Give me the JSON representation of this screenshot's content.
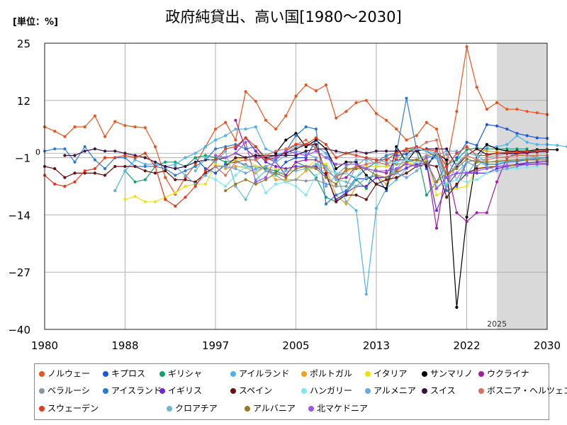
{
  "unit_label": "[単位：%]",
  "chart_data": {
    "type": "line",
    "title": "政府純貸出、高い国[1980～2030]",
    "xlim": [
      1980,
      2030
    ],
    "ylim": [
      -40,
      25
    ],
    "x_ticks": [
      "1980",
      "1988",
      "1997",
      "2005",
      "2013",
      "2022",
      "2030"
    ],
    "y_ticks": [
      "25",
      "12",
      "−1",
      "−14",
      "−27",
      "−40"
    ],
    "zero_label": "0",
    "forecast_start": 2025,
    "forecast_label": "2025",
    "grid": true,
    "legend_position": "bottom",
    "series": [
      {
        "name": "ノルウェー",
        "color": "#e8551f",
        "start": 1980,
        "values": [
          6,
          5,
          3.8,
          6,
          6,
          8.5,
          3.8,
          7.2,
          6.3,
          6,
          5.8,
          1.5,
          -5.5,
          -9.3,
          -5.5,
          -2.5,
          1.5,
          5.5,
          7,
          3,
          14,
          11.8,
          7.5,
          5.5,
          8.5,
          13,
          15.5,
          14.2,
          15.5,
          8,
          9.5,
          11.5,
          12,
          9,
          7.5,
          5.5,
          3,
          4,
          7,
          5.5,
          -3,
          9.5,
          24.2,
          15,
          10,
          11.5,
          10,
          10,
          9.5,
          9.2,
          8.8
        ]
      },
      {
        "name": "キプロス",
        "color": "#1a56db",
        "start": 1995,
        "values": [
          -1,
          -3.5,
          -4.5,
          -2.5,
          -2,
          -1.5,
          -1.5,
          -4,
          -4.5,
          -2,
          -1,
          -1,
          3,
          1,
          -5,
          -4.5,
          -5.8,
          -5.8,
          -5,
          -8.5,
          -0.5,
          -0.2,
          1.5,
          -3.5,
          1,
          -5.5,
          -1,
          2.5,
          1.8,
          6.5,
          6.2,
          5.5,
          4.5,
          4,
          3.5,
          3.4
        ]
      },
      {
        "name": "ギリシャ",
        "color": "#14a06c",
        "start": 1988,
        "values": [
          -4,
          -6.5,
          -6,
          -3,
          -2,
          -2,
          -3,
          -1,
          -0.5,
          -1,
          -2,
          -1.5,
          -3,
          -3,
          -3.5,
          -4,
          -5,
          -2,
          -3,
          -5.5,
          -10,
          -11,
          -9,
          -6,
          -8,
          -3,
          -3,
          -2.5,
          1,
          1,
          -9.5,
          -6.5,
          -2.5,
          -1.5,
          0.8,
          1.2,
          1,
          1,
          1,
          1,
          1
        ]
      },
      {
        "name": "アイルランド",
        "color": "#4fb3e8",
        "start": 1987,
        "values": [
          -8.5,
          -4,
          -1.5,
          -2.5,
          -2.5,
          -3,
          -2.5,
          -1,
          0,
          1.5,
          3,
          4,
          5.5,
          5.5,
          6,
          1,
          0,
          0,
          1.5,
          2,
          1.5,
          0,
          -4.5,
          -11,
          -13,
          -32,
          -12.5,
          -8,
          -6,
          -3.5,
          -2,
          -1,
          -0.5,
          0.5,
          0.5,
          -5,
          -1.5,
          1.5,
          1.5,
          2,
          4,
          2.5,
          2,
          2,
          1.8,
          1.5
        ]
      },
      {
        "name": "ポルトガル",
        "color": "#f0a21a",
        "start": 1998,
        "values": [
          -3.5,
          -3,
          -3.2,
          -4.5,
          -3,
          -6,
          -6,
          -6,
          -4,
          -3,
          -3.5,
          -9.5,
          -11.5,
          -7.5,
          -5.5,
          -5,
          -7,
          -4.5,
          -2,
          -3,
          -0.5,
          0,
          -5.5,
          -3,
          -0.5,
          1,
          0.5,
          0.3,
          0,
          -0.2,
          -0.5,
          -0.8
        ]
      },
      {
        "name": "イタリア",
        "color": "#f0e010",
        "start": 1988,
        "values": [
          -10.5,
          -9.8,
          -11,
          -11,
          -10,
          -9,
          -7.5,
          -7,
          -7,
          -2.5,
          -3,
          -1.5,
          -1,
          -3,
          -3,
          -3.5,
          -3.5,
          -4,
          -3.5,
          -1.5,
          -2.5,
          -5,
          -4,
          -3.5,
          -3,
          -3,
          -3,
          -2.5,
          -2.5,
          -2,
          -1.5,
          -9.5,
          -8.5,
          -8,
          -7.5,
          -3.5,
          -3,
          -3,
          -3,
          -2.8,
          -2.5,
          -2.5,
          -2.5
        ]
      },
      {
        "name": "サンマリノ",
        "color": "#000000",
        "start": 2003,
        "values": [
          0,
          3,
          4.5,
          1.5,
          3,
          1,
          -3.5,
          -2,
          -2,
          -5,
          -7,
          -8,
          1.5,
          -2,
          1,
          -3,
          0,
          -1.5,
          -35,
          -14.5,
          -0.5,
          2,
          1,
          0.5,
          0.5,
          0.5,
          0.8,
          0.8,
          0.8
        ]
      },
      {
        "name": "ウクライナ",
        "color": "#a01fa0",
        "start": 1999,
        "values": [
          7.5,
          1,
          -1,
          -1,
          -2,
          -5,
          -2,
          -1.5,
          -1.5,
          -3,
          -6,
          -5.5,
          -3,
          -3.5,
          -4,
          -4.5,
          -1.5,
          -1.5,
          -1.5,
          -2,
          -17,
          -3,
          -13.5,
          -15.5,
          -13.5,
          -13.5,
          -6.5,
          -1,
          0,
          0,
          0.5
        ]
      },
      {
        "name": "ベラルーシ",
        "color": "#8a96a8",
        "start": 1999,
        "values": [
          -2,
          -2.5,
          -4,
          -3,
          -5,
          -6.5,
          -6,
          -6.3,
          -6,
          -7,
          -7.5,
          -7.5,
          -3,
          -1,
          -2.5,
          -1,
          -2.5,
          -2,
          -1.5,
          -0.5,
          -1,
          -0.3,
          -6,
          -2,
          -3,
          -1,
          -0.5,
          0,
          -0.5,
          -0.5,
          -1,
          -1
        ]
      },
      {
        "name": "アイスランド",
        "color": "#2a7ad0",
        "start": 1980,
        "values": [
          0.5,
          1,
          1,
          -2,
          1.5,
          -1.5,
          -3.5,
          -1,
          -1,
          -3,
          -3,
          -3,
          -3.5,
          -5,
          -4,
          -3,
          -1.5,
          1,
          1.5,
          2,
          1,
          1.5,
          -1,
          -1.5,
          0.5,
          4,
          6,
          5.5,
          -11.5,
          -9.5,
          -8.5,
          -5.5,
          -3.5,
          -2,
          -0.5,
          0,
          12.5,
          1,
          0.5,
          -1,
          -8.5,
          -7.5,
          -2,
          -1.5,
          -2.5,
          -2.5,
          -2,
          -1.8,
          -1.5,
          -1.2,
          -1
        ]
      },
      {
        "name": "イギリス",
        "color": "#6a2ad8",
        "start": 1999,
        "values": [
          1,
          3.5,
          0.5,
          -2,
          -3,
          -3.5,
          -3,
          -3,
          -3,
          -5,
          -10.5,
          -9,
          -7.5,
          -7.5,
          -5.5,
          -5.5,
          -4.5,
          -3.3,
          -2.5,
          -2.3,
          -13,
          -7.5,
          -4.5,
          -4.5,
          -4.5,
          -4.5,
          -3.5,
          -3,
          -2.5,
          -2.2,
          -2,
          -1.8
        ]
      },
      {
        "name": "スペイン",
        "color": "#6a1010",
        "start": 1980,
        "values": [
          -3,
          -3.5,
          -5.5,
          -4.5,
          -4.5,
          -4.5,
          -5,
          -3,
          -3,
          -3,
          -4,
          -4.5,
          -4,
          -6,
          -6,
          -6.5,
          -4.5,
          -3,
          -3,
          -1,
          -1,
          -0.5,
          -0.5,
          -0.5,
          0,
          1,
          2,
          2,
          -4.5,
          -11,
          -9.5,
          -9.5,
          -10.5,
          -7,
          -6,
          -5.5,
          -4.5,
          -3,
          -2.5,
          -3,
          -10,
          -7,
          -4.5,
          -3.5,
          -3.2,
          -3,
          -2.8,
          -2.6,
          -2.5,
          -2.4,
          -2.3
        ]
      },
      {
        "name": "ハンガリー",
        "color": "#7fe6f0",
        "start": 1996,
        "values": [
          -5,
          -6,
          -7.5,
          -5,
          -3,
          -4,
          -9,
          -7,
          -6.5,
          -7.5,
          -9.5,
          -5,
          -3.7,
          -4.5,
          -4.5,
          -5.5,
          -2,
          -2.5,
          -2.5,
          -2,
          -1.5,
          -2,
          -2,
          -7.5,
          -7,
          -6,
          -6.5,
          -6,
          -4.5,
          -4,
          -3.5,
          -3.5,
          -3.2,
          -3
        ]
      },
      {
        "name": "アルメニア",
        "color": "#6ea8e0",
        "start": 1993,
        "values": [
          -3,
          -5,
          -7,
          -5,
          -3,
          -3,
          -3.5,
          -4.5,
          -3.5,
          -3,
          -2,
          -0.5,
          0.5,
          0,
          -1,
          -7.5,
          -5,
          -3,
          -1.5,
          -1.5,
          -1.5,
          -2,
          -4.5,
          -5.5,
          -4,
          -2,
          -1,
          -5.5,
          -4.5,
          -2,
          -1.5,
          -3,
          -4,
          -3.5,
          -3,
          -2.5,
          -2.5,
          -2.3
        ]
      },
      {
        "name": "スイス",
        "color": "#3a1040",
        "start": 1982,
        "values": [
          -0.5,
          -0.5,
          0.5,
          1,
          0.5,
          0.5,
          0,
          -0.5,
          -1,
          -2,
          -3,
          -3.5,
          -3,
          -2,
          -1.5,
          -1.5,
          -1,
          0,
          -1,
          -0.5,
          -1,
          -0.5,
          -0.5,
          -0.5,
          0.5,
          1,
          1,
          0.5,
          0,
          0.5,
          0,
          0.5,
          0.5,
          0.5,
          0.5,
          0.5,
          1,
          1,
          1,
          -3,
          -0.5,
          1,
          -0.3,
          0,
          0,
          0,
          0.2,
          0.3,
          0.4
        ]
      },
      {
        "name": "ボスニア・ヘルツェゴビナ",
        "color": "#d87060",
        "start": 1997,
        "values": [
          -3,
          -5,
          -2,
          -1.5,
          -1.5,
          -0.5,
          0.5,
          1,
          2,
          3,
          1,
          -4,
          -5.5,
          -4,
          -3,
          -2.5,
          -2,
          -2.5,
          -1,
          0.5,
          1,
          2.5,
          3,
          -5.5,
          -2.5,
          -0.5,
          -1.5,
          -1.5,
          -1,
          -0.8,
          -0.5,
          -0.5,
          -0.5,
          -0.5
        ]
      },
      {
        "name": "スウェーデン",
        "color": "#e23a1a",
        "start": 1980,
        "values": [
          -5,
          -7,
          -7.5,
          -6.5,
          -4,
          -3.5,
          -1,
          -1,
          -0.5,
          -1,
          0,
          -3,
          -10.5,
          -12,
          -10,
          -7.5,
          -4,
          -1.5,
          1,
          1.5,
          3.5,
          1.5,
          -1.5,
          -1,
          0.5,
          2,
          2,
          3.5,
          2,
          -1,
          0,
          -0.5,
          -1,
          -1.5,
          -1.5,
          0,
          1,
          1.5,
          0.8,
          0.5,
          -3,
          0,
          1.5,
          -0.5,
          -0.5,
          0,
          0.2,
          0.3,
          0.4,
          0.5,
          0.6
        ]
      },
      {
        "name": "クロアチア",
        "color": "#6ab8d0",
        "start": 1995,
        "values": [
          -4,
          -1,
          -2,
          0.5,
          -7.5,
          -10.5,
          -6,
          -4,
          -5,
          -4,
          -4,
          -3.5,
          -2.5,
          -3,
          -6,
          -6.5,
          -7.5,
          -5.5,
          -5,
          -5.5,
          -3.5,
          -1,
          1,
          0.5,
          0,
          -7.5,
          -2.5,
          0,
          -0.5,
          -2,
          -2,
          -1.8,
          -1.5,
          -1.2,
          -1
        ]
      },
      {
        "name": "アルバニア",
        "color": "#9a7a20",
        "start": 1998,
        "values": [
          -8.5,
          -7,
          -6,
          -7,
          -6,
          -4.5,
          -5.5,
          -3.5,
          -3,
          -3.5,
          -5.5,
          -7,
          -3.5,
          -3.5,
          -3.5,
          -5,
          -5.5,
          -4,
          -2,
          -1.5,
          -2,
          -6.5,
          -4.5,
          -3.5,
          -1.3,
          -2,
          -2,
          -1.8,
          -1.6,
          -1.5,
          -1.5,
          -1.5,
          -1.5
        ]
      },
      {
        "name": "北マケドニア",
        "color": "#9a55ea",
        "start": 1997,
        "values": [
          -0.5,
          -1,
          0,
          2.5,
          -6.5,
          -5.5,
          -1,
          0.5,
          0,
          -0.5,
          0.5,
          -1,
          -2.5,
          -2.5,
          -2.5,
          -3.5,
          -4,
          -4,
          -3.5,
          -2.5,
          -3,
          -1,
          -8,
          -5.5,
          -4.5,
          -4.5,
          -4,
          -3.5,
          -3,
          -2.8,
          -2.7,
          -2.6,
          -2.5,
          -2.5
        ]
      }
    ]
  }
}
